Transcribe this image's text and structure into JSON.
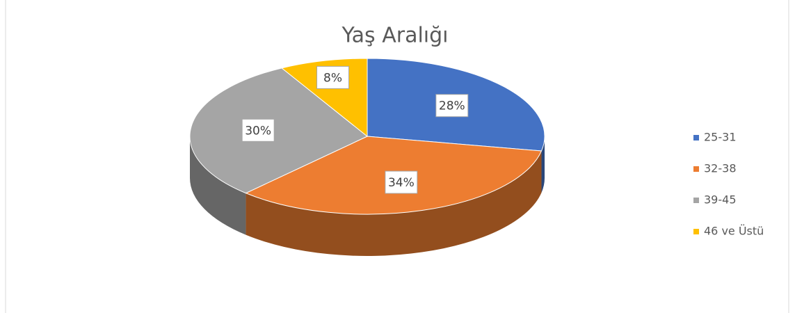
{
  "chart_data": {
    "type": "pie",
    "title": "Yaş Aralığı",
    "categories": [
      "25-31",
      "32-38",
      "39-45",
      "46 ve Üstü"
    ],
    "values": [
      28,
      34,
      30,
      8
    ],
    "value_labels": [
      "28%",
      "34%",
      "30%",
      "8%"
    ],
    "colors": [
      "#4472c4",
      "#ed7d31",
      "#a5a5a5",
      "#ffc000"
    ],
    "legend": "right"
  }
}
